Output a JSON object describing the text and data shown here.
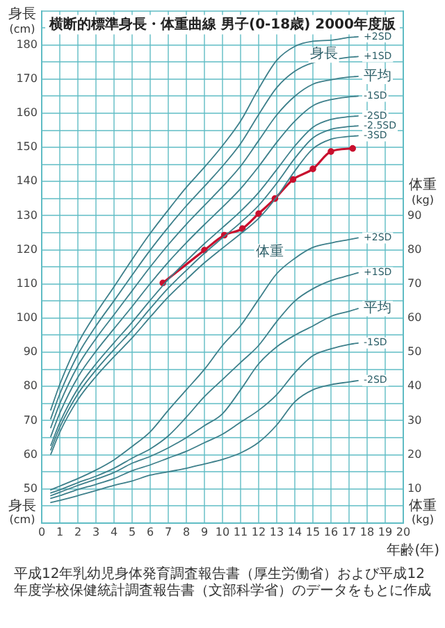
{
  "chart_data": {
    "type": "line",
    "title": "横断的標準身長・体重曲線 男子(0-18歳) 2000年度版",
    "xlabel": "年齢(年)",
    "ylabel": "身長(cm)",
    "y2label": "体重(kg)",
    "x": [
      0.5,
      1,
      2,
      3,
      4,
      5,
      6,
      7,
      8,
      9,
      10,
      11,
      12,
      13,
      14,
      15,
      16,
      17,
      17.5
    ],
    "xlim": [
      0,
      20
    ],
    "xticks": [
      0,
      1,
      2,
      3,
      4,
      5,
      6,
      7,
      8,
      9,
      10,
      11,
      12,
      13,
      14,
      15,
      16,
      17,
      18,
      19,
      20
    ],
    "ylim": [
      40,
      190
    ],
    "yticks": [
      {
        "value": 45,
        "label": null
      },
      50,
      {
        "value": 55,
        "label": null
      },
      60,
      {
        "value": 65,
        "label": null
      },
      70,
      {
        "value": 75,
        "label": null
      },
      80,
      {
        "value": 85,
        "label": null
      },
      90,
      {
        "value": 95,
        "label": null
      },
      100,
      {
        "value": 105,
        "label": null
      },
      110,
      {
        "value": 115,
        "label": null
      },
      120,
      {
        "value": 125,
        "label": null
      },
      130,
      {
        "value": 135,
        "label": null
      },
      140,
      {
        "value": 145,
        "label": null
      },
      150,
      {
        "value": 155,
        "label": null
      },
      160,
      {
        "value": 165,
        "label": null
      },
      170,
      {
        "value": 175,
        "label": null
      },
      180,
      {
        "value": 185,
        "label": null
      },
      {
        "value": 190,
        "label": null
      }
    ],
    "y2lim": [
      0,
      150
    ],
    "y2ticks": [
      10,
      20,
      30,
      40,
      50,
      60,
      70,
      80,
      90
    ],
    "grid": true,
    "legend": false,
    "series": [
      {
        "name": "+2SD",
        "color": "#3d7f8a",
        "values": [
          73.1,
          80.6,
          92.6,
          101.4,
          109.2,
          117.2,
          124.8,
          131.7,
          138.3,
          144.2,
          150.5,
          157.7,
          167.2,
          175.5,
          179.6,
          181.1,
          181.4,
          182.2,
          182.4
        ]
      },
      {
        "name": "+1SD",
        "color": "#3d7f8a",
        "values": [
          70.5,
          77.8,
          89.3,
          97.7,
          105.1,
          112.6,
          119.9,
          126.6,
          132.9,
          138.6,
          144.5,
          151.1,
          159.6,
          167.5,
          172.3,
          174.8,
          175.6,
          176.4,
          176.6
        ]
      },
      {
        "name": "平均",
        "color": "#3d7f8a",
        "values": [
          67.9,
          75,
          86,
          94,
          101,
          108,
          115,
          121.5,
          127.5,
          133,
          138.5,
          144.5,
          152,
          159.5,
          165,
          168.5,
          169.8,
          170.6,
          170.8
        ]
      },
      {
        "name": "-1SD",
        "color": "#3d7f8a",
        "values": [
          65.3,
          72.2,
          82.7,
          90.3,
          96.9,
          103.4,
          110.1,
          116.4,
          122.1,
          127.4,
          132.5,
          137.9,
          144.4,
          151.5,
          157.7,
          162.2,
          164,
          164.8,
          165
        ]
      },
      {
        "name": "-2SD",
        "color": "#3d7f8a",
        "values": [
          62.7,
          69.4,
          79.4,
          86.6,
          92.8,
          98.8,
          105.2,
          111.3,
          116.7,
          121.8,
          126.5,
          131.3,
          136.8,
          143.5,
          150.4,
          155.9,
          158.2,
          159,
          159.2
        ]
      },
      {
        "name": "-2.5SD",
        "color": "#3d7f8a",
        "values": [
          61.4,
          68,
          77.8,
          84.8,
          90.8,
          96.5,
          102.8,
          108.8,
          114,
          119,
          123.5,
          128,
          133,
          139.5,
          146.8,
          152.8,
          155.3,
          156.1,
          156.3
        ]
      },
      {
        "name": "-3SD",
        "color": "#3d7f8a",
        "values": [
          60.1,
          66.6,
          76.1,
          82.9,
          88.7,
          94.2,
          100.3,
          106.2,
          111.3,
          116.2,
          120.5,
          124.7,
          129.2,
          135.5,
          143.1,
          149.6,
          152.4,
          153.2,
          153.4
        ]
      },
      {
        "name": "+2SD",
        "color": "#3d7f8a",
        "axis": "y2",
        "values": [
          9.7,
          10.8,
          13,
          15.5,
          18.5,
          22.4,
          26.7,
          33,
          39,
          45,
          52,
          57.8,
          65.5,
          73,
          77.5,
          80.7,
          82,
          83,
          83.5
        ]
      },
      {
        "name": "+1SD",
        "color": "#3d7f8a",
        "axis": "y2",
        "values": [
          8.8,
          9.7,
          11.8,
          13.7,
          16,
          19,
          21.7,
          25.5,
          31,
          37,
          42,
          47,
          52,
          59,
          65,
          68.6,
          71,
          72.5,
          73.3
        ]
      },
      {
        "name": "平均",
        "color": "#3d7f8a",
        "axis": "y2",
        "values": [
          8,
          9,
          11,
          12.8,
          14.8,
          17.5,
          19.5,
          22,
          25,
          28.5,
          32,
          39,
          46.6,
          51.6,
          55,
          57.7,
          60.5,
          62,
          62.8
        ]
      },
      {
        "name": "-1SD",
        "color": "#3d7f8a",
        "axis": "y2",
        "values": [
          7.2,
          8,
          9.8,
          11.3,
          13,
          15.3,
          17,
          19,
          21,
          23.5,
          26,
          29.5,
          33,
          37.6,
          44,
          49,
          51,
          52.3,
          52.7
        ]
      },
      {
        "name": "-2SD",
        "color": "#3d7f8a",
        "axis": "y2",
        "values": [
          6,
          6.6,
          8,
          9.5,
          11,
          12.3,
          14,
          15,
          16,
          17.3,
          18.6,
          20.5,
          23.6,
          28.7,
          35.5,
          39,
          40.5,
          41.3,
          41.7
        ]
      },
      {
        "color": "#c8102e",
        "marker": "circle",
        "x": [
          6.7,
          9,
          10.1,
          11.1,
          12,
          12.9,
          13.9,
          15,
          16,
          17.2
        ],
        "values": [
          110.3,
          119.9,
          124.3,
          126.2,
          130.6,
          135,
          140.6,
          143.7,
          148.8,
          149.7
        ]
      }
    ],
    "annotations": [
      {
        "text": "身長",
        "x": 14.6,
        "y": 180.5
      },
      {
        "text": "体重",
        "x": 13.6,
        "y": 116
      },
      "平成12年乳幼児身体発育調査報告書（厚生労働省）および平成12年度学校保健統計調査報告書（文部科学省）のデータをもとに作成"
    ]
  }
}
